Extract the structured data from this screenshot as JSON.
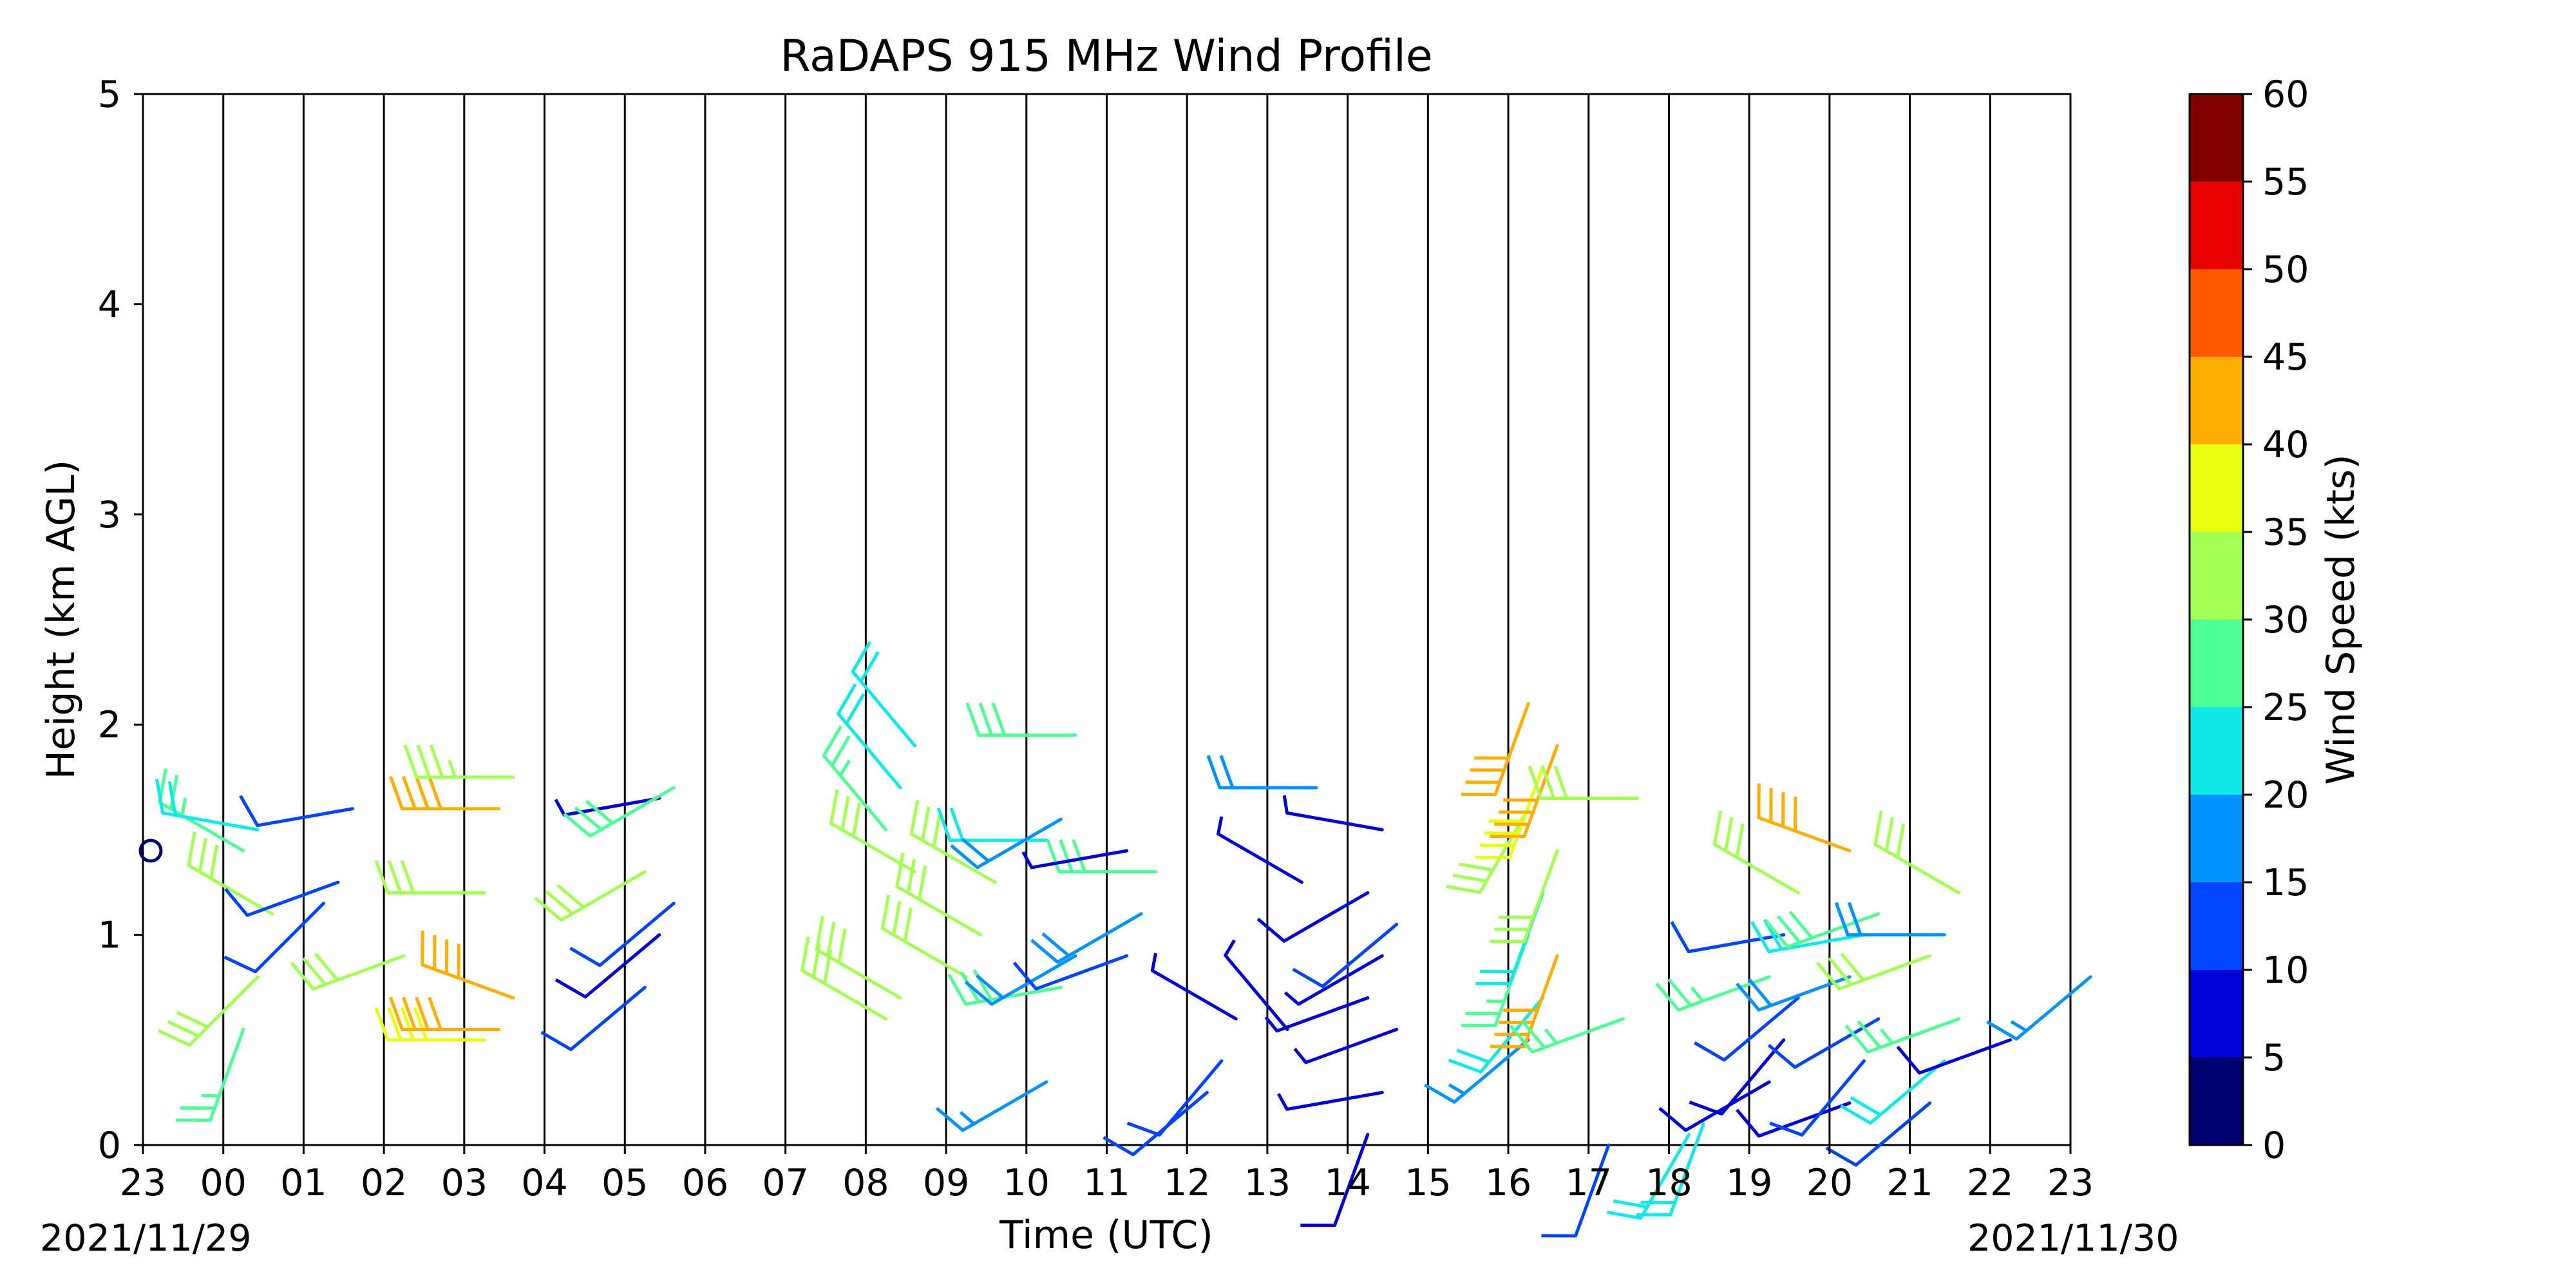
{
  "chart_data": {
    "type": "wind-barb",
    "title": "RaDAPS 915 MHz Wind Profile",
    "xlabel": "Time (UTC)",
    "ylabel": "Height (km AGL)",
    "ylim": [
      0,
      5
    ],
    "x_ticks": [
      "23",
      "00",
      "01",
      "02",
      "03",
      "04",
      "05",
      "06",
      "07",
      "08",
      "09",
      "10",
      "11",
      "12",
      "13",
      "14",
      "15",
      "16",
      "17",
      "18",
      "19",
      "20",
      "21",
      "22",
      "23"
    ],
    "y_ticks": [
      "0",
      "1",
      "2",
      "3",
      "4",
      "5"
    ],
    "start_date": "2021/11/29",
    "end_date": "2021/11/30",
    "grid": "vertical lines at each hour",
    "colorbar": {
      "label": "Wind Speed (kts)",
      "ticks": [
        "0",
        "5",
        "10",
        "15",
        "20",
        "25",
        "30",
        "35",
        "40",
        "45",
        "50",
        "55",
        "60"
      ],
      "bins": [
        {
          "min": 0,
          "max": 5,
          "color": "#00006e"
        },
        {
          "min": 5,
          "max": 10,
          "color": "#0000d6"
        },
        {
          "min": 10,
          "max": 15,
          "color": "#0044ff"
        },
        {
          "min": 15,
          "max": 20,
          "color": "#0093ff"
        },
        {
          "min": 20,
          "max": 25,
          "color": "#10e9e7"
        },
        {
          "min": 25,
          "max": 30,
          "color": "#4dff96"
        },
        {
          "min": 30,
          "max": 35,
          "color": "#a3ff53"
        },
        {
          "min": 35,
          "max": 40,
          "color": "#e7ff10"
        },
        {
          "min": 40,
          "max": 45,
          "color": "#ffad00"
        },
        {
          "min": 45,
          "max": 50,
          "color": "#ff5900"
        },
        {
          "min": 50,
          "max": 55,
          "color": "#e60000"
        },
        {
          "min": 55,
          "max": 60,
          "color": "#800000"
        }
      ]
    },
    "series": [
      {
        "hour": "00",
        "barbs": [
          {
            "h": 0.55,
            "dir": 200,
            "spd": 25
          },
          {
            "h": 0.8,
            "dir": 225,
            "spd": 32
          },
          {
            "h": 1.1,
            "dir": 300,
            "spd": 30
          },
          {
            "h": 1.4,
            "dir": 300,
            "spd": 25
          },
          {
            "h": 1.5,
            "dir": 280,
            "spd": 20
          }
        ]
      },
      {
        "hour": "01",
        "barbs": [
          {
            "h": 1.15,
            "dir": 225,
            "spd": 10
          },
          {
            "h": 1.25,
            "dir": 250,
            "spd": 12
          },
          {
            "h": 1.6,
            "dir": 260,
            "spd": 10
          }
        ]
      },
      {
        "hour": "02",
        "barbs": [
          {
            "h": 0.9,
            "dir": 250,
            "spd": 32
          }
        ]
      },
      {
        "hour": "03",
        "barbs": [
          {
            "h": 0.5,
            "dir": 270,
            "spd": 38
          },
          {
            "h": 0.55,
            "dir": 270,
            "spd": 42
          },
          {
            "h": 0.7,
            "dir": 290,
            "spd": 42
          },
          {
            "h": 1.2,
            "dir": 270,
            "spd": 32
          },
          {
            "h": 1.6,
            "dir": 270,
            "spd": 42
          },
          {
            "h": 1.75,
            "dir": 270,
            "spd": 33
          }
        ]
      },
      {
        "hour": "05",
        "barbs": [
          {
            "h": 0.75,
            "dir": 230,
            "spd": 10
          },
          {
            "h": 1.0,
            "dir": 230,
            "spd": 8
          },
          {
            "h": 1.15,
            "dir": 230,
            "spd": 10
          },
          {
            "h": 1.3,
            "dir": 240,
            "spd": 30
          },
          {
            "h": 1.65,
            "dir": 260,
            "spd": 5
          },
          {
            "h": 1.7,
            "dir": 240,
            "spd": 28
          }
        ]
      },
      {
        "hour": "08",
        "barbs": [
          {
            "h": 0.6,
            "dir": 300,
            "spd": 32
          },
          {
            "h": 0.7,
            "dir": 300,
            "spd": 32
          },
          {
            "h": 1.3,
            "dir": 300,
            "spd": 32
          },
          {
            "h": 1.5,
            "dir": 320,
            "spd": 25
          },
          {
            "h": 1.7,
            "dir": 320,
            "spd": 22
          },
          {
            "h": 1.9,
            "dir": 320,
            "spd": 22
          }
        ]
      },
      {
        "hour": "09",
        "barbs": [
          {
            "h": 0.8,
            "dir": 300,
            "spd": 32
          },
          {
            "h": 1.0,
            "dir": 300,
            "spd": 32
          },
          {
            "h": 1.25,
            "dir": 300,
            "spd": 32
          }
        ]
      },
      {
        "hour": "10",
        "barbs": [
          {
            "h": 0.3,
            "dir": 240,
            "spd": 15
          },
          {
            "h": 0.75,
            "dir": 260,
            "spd": 28
          },
          {
            "h": 0.9,
            "dir": 240,
            "spd": 18
          },
          {
            "h": 1.45,
            "dir": 270,
            "spd": 20
          },
          {
            "h": 1.55,
            "dir": 240,
            "spd": 18
          },
          {
            "h": 1.95,
            "dir": 270,
            "spd": 28
          }
        ]
      },
      {
        "hour": "11",
        "barbs": [
          {
            "h": 0.9,
            "dir": 250,
            "spd": 12
          },
          {
            "h": 1.1,
            "dir": 240,
            "spd": 18
          },
          {
            "h": 1.3,
            "dir": 270,
            "spd": 28
          },
          {
            "h": 1.4,
            "dir": 260,
            "spd": 5
          }
        ]
      },
      {
        "hour": "12",
        "barbs": [
          {
            "h": 0.25,
            "dir": 230,
            "spd": 10
          },
          {
            "h": 0.4,
            "dir": 220,
            "spd": 10
          },
          {
            "h": 0.6,
            "dir": 300,
            "spd": 5
          }
        ]
      },
      {
        "hour": "13",
        "barbs": [
          {
            "h": 0.55,
            "dir": 320,
            "spd": 5
          },
          {
            "h": 1.25,
            "dir": 300,
            "spd": 5
          },
          {
            "h": 1.7,
            "dir": 270,
            "spd": 18
          }
        ]
      },
      {
        "hour": "14",
        "barbs": [
          {
            "h": 0.05,
            "dir": 200,
            "spd": 8
          },
          {
            "h": 0.25,
            "dir": 260,
            "spd": 5
          },
          {
            "h": 0.55,
            "dir": 250,
            "spd": 5
          },
          {
            "h": 0.7,
            "dir": 250,
            "spd": 5
          },
          {
            "h": 0.9,
            "dir": 240,
            "spd": 5
          },
          {
            "h": 1.05,
            "dir": 230,
            "spd": 10
          },
          {
            "h": 1.2,
            "dir": 240,
            "spd": 8
          },
          {
            "h": 1.5,
            "dir": 280,
            "spd": 5
          }
        ]
      },
      {
        "hour": "16",
        "barbs": [
          {
            "h": 0.5,
            "dir": 230,
            "spd": 15
          },
          {
            "h": 0.7,
            "dir": 220,
            "spd": 22
          },
          {
            "h": 0.9,
            "dir": 200,
            "spd": 42
          },
          {
            "h": 1.0,
            "dir": 200,
            "spd": 25
          },
          {
            "h": 1.2,
            "dir": 200,
            "spd": 22
          },
          {
            "h": 1.4,
            "dir": 200,
            "spd": 30
          },
          {
            "h": 1.6,
            "dir": 210,
            "spd": 32
          },
          {
            "h": 1.8,
            "dir": 200,
            "spd": 38
          },
          {
            "h": 1.9,
            "dir": 200,
            "spd": 42
          },
          {
            "h": 2.1,
            "dir": 200,
            "spd": 42
          }
        ]
      },
      {
        "hour": "17",
        "barbs": [
          {
            "h": 0.0,
            "dir": 200,
            "spd": 10
          },
          {
            "h": 0.6,
            "dir": 250,
            "spd": 25
          },
          {
            "h": 1.65,
            "dir": 270,
            "spd": 32
          }
        ]
      },
      {
        "hour": "18",
        "barbs": [
          {
            "h": 0.05,
            "dir": 210,
            "spd": 22
          },
          {
            "h": 0.1,
            "dir": 200,
            "spd": 22
          }
        ]
      },
      {
        "hour": "19",
        "barbs": [
          {
            "h": 0.3,
            "dir": 240,
            "spd": 8
          },
          {
            "h": 0.5,
            "dir": 220,
            "spd": 8
          },
          {
            "h": 0.7,
            "dir": 230,
            "spd": 10
          },
          {
            "h": 0.8,
            "dir": 250,
            "spd": 25
          },
          {
            "h": 1.0,
            "dir": 260,
            "spd": 10
          },
          {
            "h": 1.2,
            "dir": 300,
            "spd": 32
          }
        ]
      },
      {
        "hour": "20",
        "barbs": [
          {
            "h": 0.2,
            "dir": 250,
            "spd": 8
          },
          {
            "h": 0.4,
            "dir": 220,
            "spd": 10
          },
          {
            "h": 0.6,
            "dir": 240,
            "spd": 12
          },
          {
            "h": 0.8,
            "dir": 250,
            "spd": 18
          },
          {
            "h": 1.0,
            "dir": 260,
            "spd": 22
          },
          {
            "h": 1.1,
            "dir": 250,
            "spd": 28
          },
          {
            "h": 1.4,
            "dir": 290,
            "spd": 42
          }
        ]
      },
      {
        "hour": "21",
        "barbs": [
          {
            "h": 0.2,
            "dir": 230,
            "spd": 10
          },
          {
            "h": 0.4,
            "dir": 230,
            "spd": 22
          },
          {
            "h": 0.6,
            "dir": 250,
            "spd": 25
          },
          {
            "h": 0.9,
            "dir": 250,
            "spd": 30
          },
          {
            "h": 1.0,
            "dir": 270,
            "spd": 18
          },
          {
            "h": 1.2,
            "dir": 300,
            "spd": 32
          }
        ]
      },
      {
        "hour": "22",
        "barbs": [
          {
            "h": 0.5,
            "dir": 250,
            "spd": 8
          }
        ]
      },
      {
        "hour": "23",
        "barbs": [
          {
            "h": 0.8,
            "dir": 230,
            "spd": 15
          }
        ]
      }
    ],
    "annotations": [
      {
        "text": "calm circle",
        "h": 1.4,
        "hour": "23 (start)"
      }
    ]
  }
}
